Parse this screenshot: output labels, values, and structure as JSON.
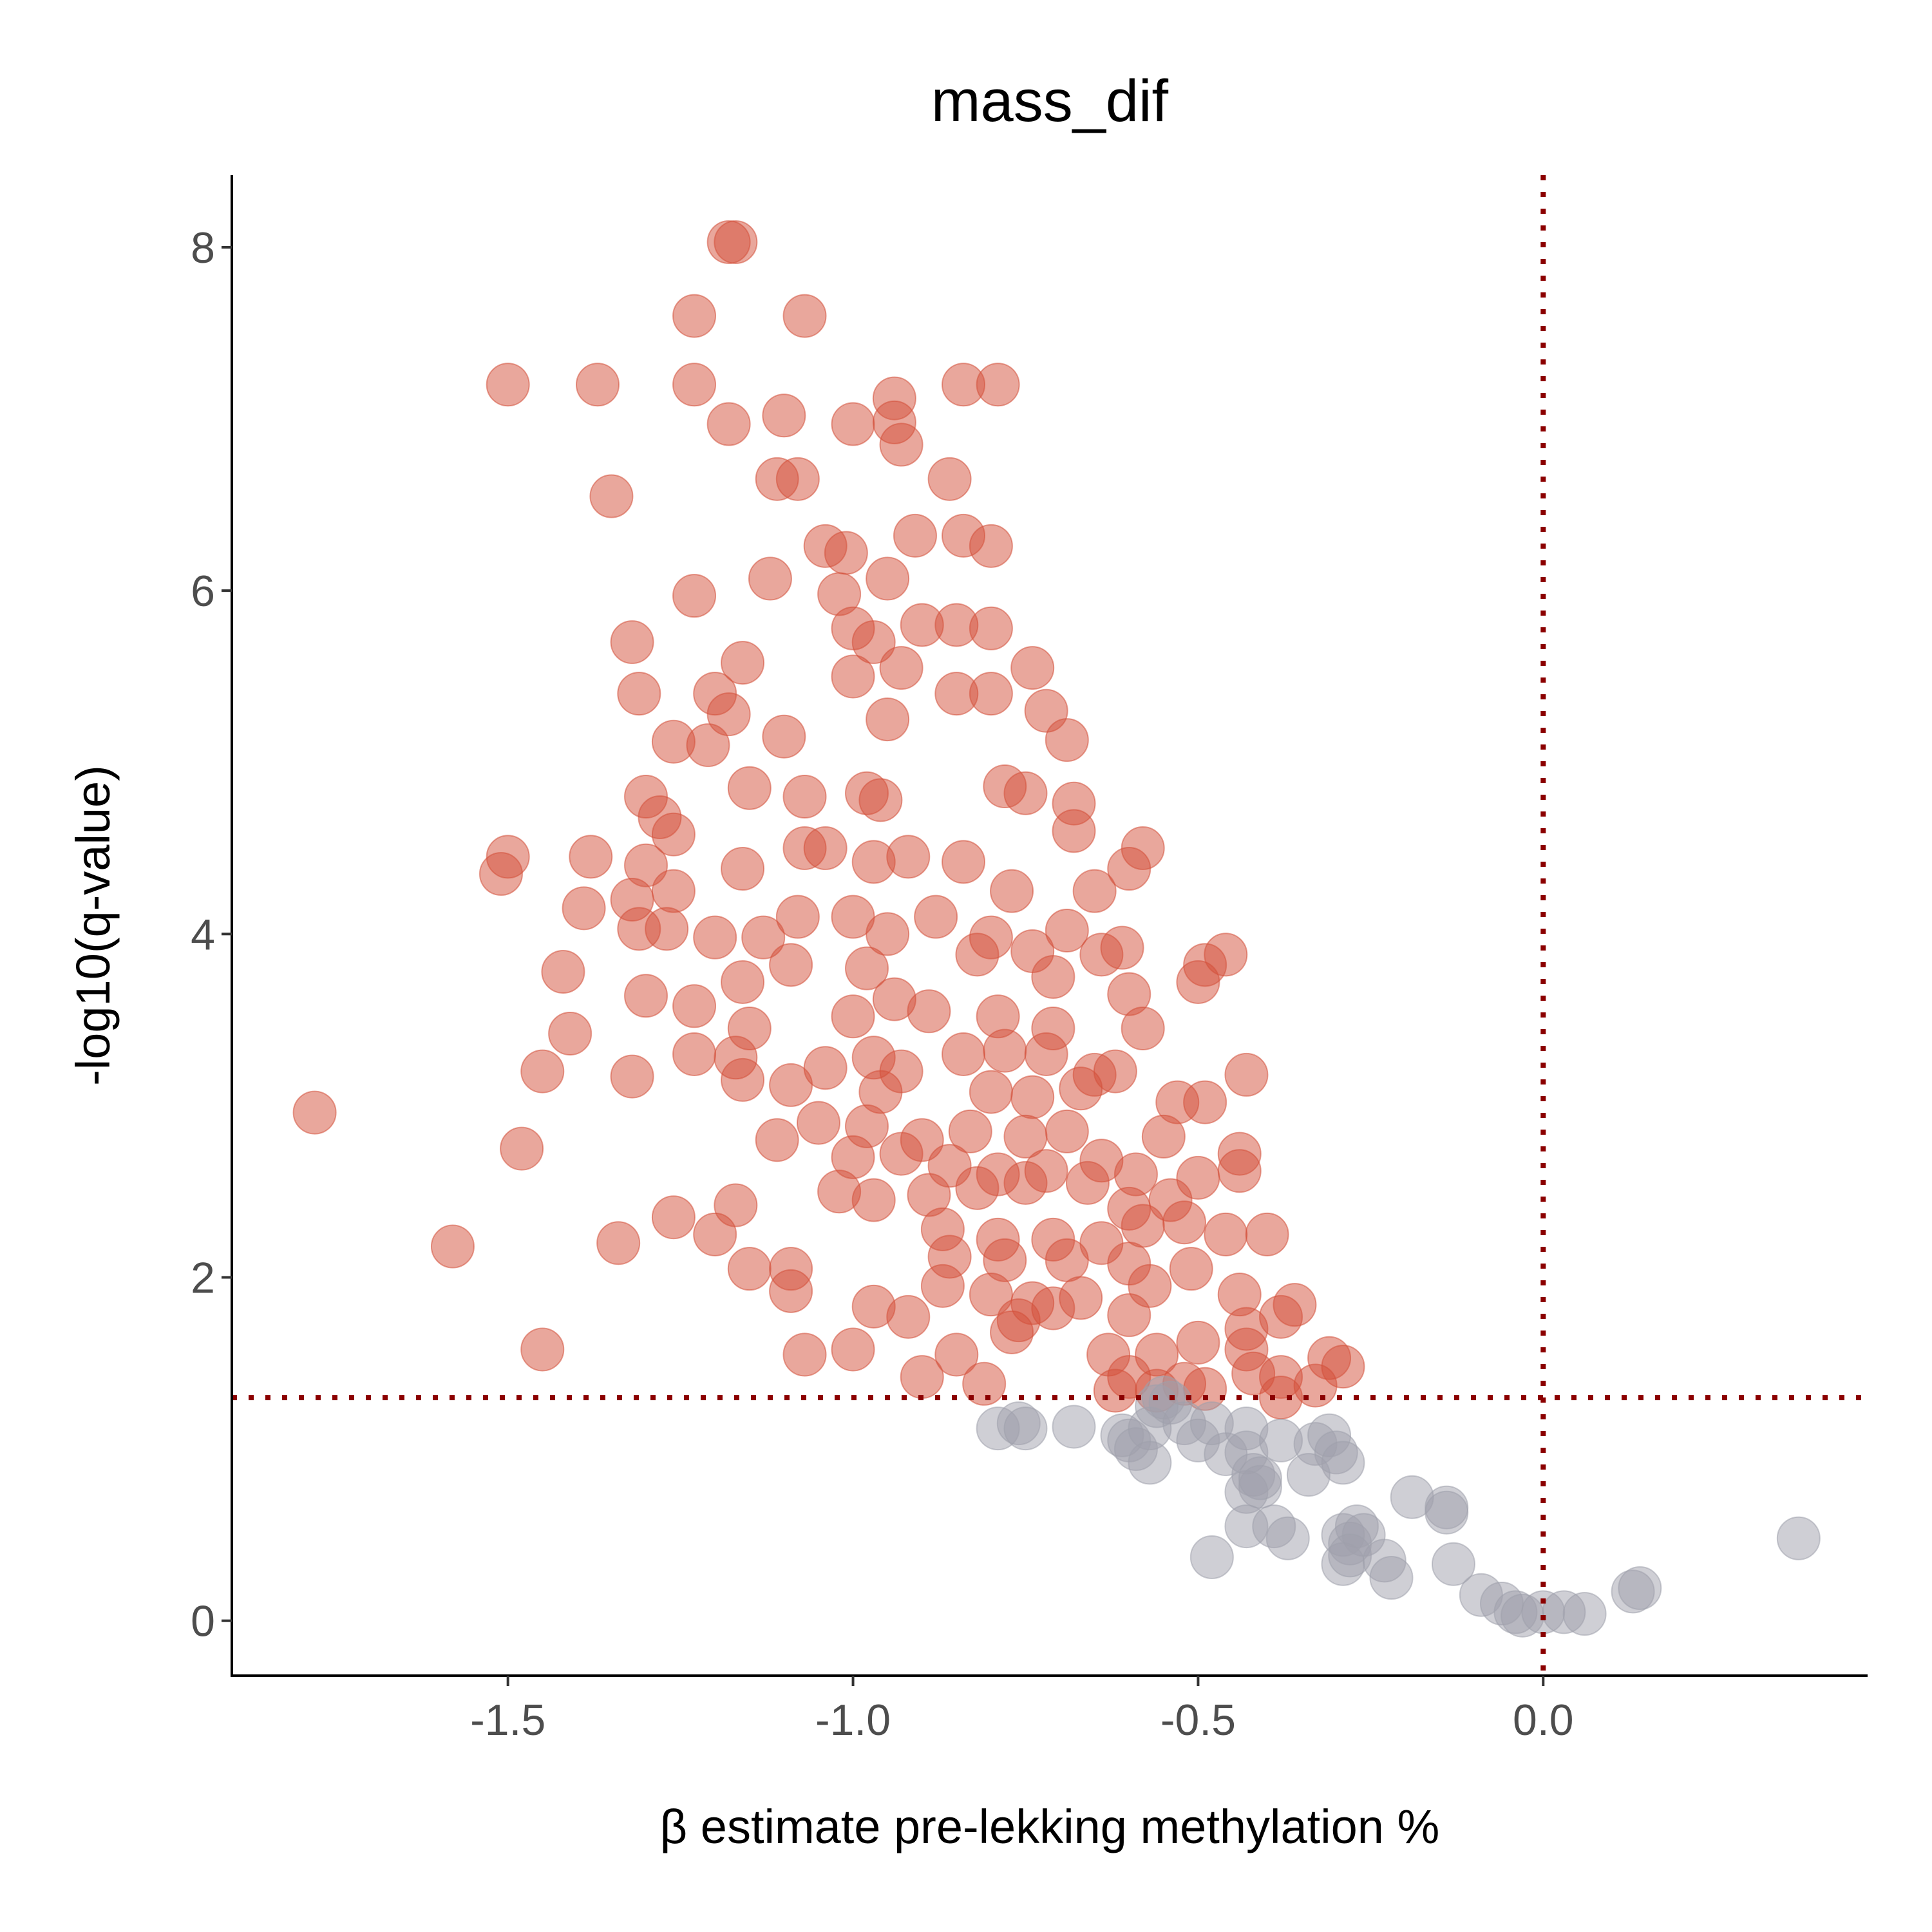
{
  "chart_data": {
    "type": "scatter",
    "title": "mass_dif",
    "xlabel": "β estimate pre-lekking methylation %",
    "ylabel": "-log10(q-value)",
    "xlim": [
      -1.9,
      0.47
    ],
    "ylim": [
      -0.32,
      8.42
    ],
    "x_ticks": [
      -1.5,
      -1.0,
      -0.5,
      0.0
    ],
    "x_tick_labels": [
      "-1.5",
      "-1.0",
      "-0.5",
      "0.0"
    ],
    "y_ticks": [
      0,
      2,
      4,
      6,
      8
    ],
    "y_tick_labels": [
      "0",
      "2",
      "4",
      "6",
      "8"
    ],
    "reference_lines": {
      "vertical_x": 0.0,
      "horizontal_y": 1.3,
      "color": "#8b0000",
      "style": "dotted"
    },
    "grid": false,
    "colors": {
      "significant": "#d4503a",
      "not_significant": "#9fa0ab"
    },
    "series": [
      {
        "values": [
          [
            -1.17,
            8.03
          ],
          [
            -1.18,
            8.03
          ],
          [
            -1.23,
            7.6
          ],
          [
            -1.07,
            7.6
          ],
          [
            -1.5,
            7.2
          ],
          [
            -1.37,
            7.2
          ],
          [
            -1.23,
            7.2
          ],
          [
            -0.84,
            7.2
          ],
          [
            -0.79,
            7.2
          ],
          [
            -0.94,
            7.12
          ],
          [
            -1.18,
            6.97
          ],
          [
            -1.1,
            7.02
          ],
          [
            -1.0,
            6.97
          ],
          [
            -0.94,
            6.98
          ],
          [
            -0.93,
            6.85
          ],
          [
            -1.11,
            6.65
          ],
          [
            -1.08,
            6.65
          ],
          [
            -0.86,
            6.65
          ],
          [
            -1.35,
            6.55
          ],
          [
            -0.91,
            6.32
          ],
          [
            -0.84,
            6.32
          ],
          [
            -1.04,
            6.26
          ],
          [
            -1.01,
            6.22
          ],
          [
            -0.8,
            6.26
          ],
          [
            -1.23,
            5.97
          ],
          [
            -1.12,
            6.07
          ],
          [
            -0.95,
            6.07
          ],
          [
            -1.02,
            5.98
          ],
          [
            -1.32,
            5.7
          ],
          [
            -1.16,
            5.58
          ],
          [
            -1.0,
            5.78
          ],
          [
            -0.97,
            5.7
          ],
          [
            -0.9,
            5.8
          ],
          [
            -0.85,
            5.8
          ],
          [
            -0.8,
            5.78
          ],
          [
            -0.74,
            5.55
          ],
          [
            -1.31,
            5.4
          ],
          [
            -1.2,
            5.4
          ],
          [
            -1.18,
            5.28
          ],
          [
            -1.26,
            5.12
          ],
          [
            -1.21,
            5.1
          ],
          [
            -1.1,
            5.15
          ],
          [
            -1.0,
            5.5
          ],
          [
            -0.93,
            5.55
          ],
          [
            -0.85,
            5.4
          ],
          [
            -0.8,
            5.4
          ],
          [
            -0.72,
            5.3
          ],
          [
            -0.69,
            5.13
          ],
          [
            -0.95,
            5.25
          ],
          [
            -1.3,
            4.8
          ],
          [
            -1.15,
            4.85
          ],
          [
            -1.07,
            4.8
          ],
          [
            -0.98,
            4.82
          ],
          [
            -0.96,
            4.78
          ],
          [
            -0.78,
            4.86
          ],
          [
            -0.75,
            4.82
          ],
          [
            -0.68,
            4.76
          ],
          [
            -1.28,
            4.68
          ],
          [
            -1.26,
            4.58
          ],
          [
            -1.5,
            4.45
          ],
          [
            -1.51,
            4.35
          ],
          [
            -1.38,
            4.45
          ],
          [
            -1.3,
            4.4
          ],
          [
            -1.26,
            4.25
          ],
          [
            -1.32,
            4.2
          ],
          [
            -1.39,
            4.15
          ],
          [
            -1.16,
            4.38
          ],
          [
            -1.07,
            4.5
          ],
          [
            -1.04,
            4.5
          ],
          [
            -0.97,
            4.42
          ],
          [
            -0.92,
            4.45
          ],
          [
            -0.84,
            4.42
          ],
          [
            -0.77,
            4.25
          ],
          [
            -0.68,
            4.6
          ],
          [
            -0.58,
            4.5
          ],
          [
            -0.6,
            4.38
          ],
          [
            -0.65,
            4.25
          ],
          [
            -1.31,
            4.03
          ],
          [
            -1.27,
            4.03
          ],
          [
            -1.2,
            3.98
          ],
          [
            -1.13,
            3.98
          ],
          [
            -1.08,
            4.1
          ],
          [
            -1.0,
            4.1
          ],
          [
            -0.95,
            4.0
          ],
          [
            -0.88,
            4.1
          ],
          [
            -0.8,
            3.98
          ],
          [
            -0.74,
            3.9
          ],
          [
            -0.69,
            4.02
          ],
          [
            -0.64,
            3.88
          ],
          [
            -0.61,
            3.92
          ],
          [
            -1.42,
            3.78
          ],
          [
            -1.16,
            3.72
          ],
          [
            -1.09,
            3.82
          ],
          [
            -0.98,
            3.8
          ],
          [
            -0.82,
            3.88
          ],
          [
            -0.71,
            3.75
          ],
          [
            -0.49,
            3.82
          ],
          [
            -0.46,
            3.88
          ],
          [
            -0.5,
            3.72
          ],
          [
            -1.3,
            3.64
          ],
          [
            -1.23,
            3.58
          ],
          [
            -1.15,
            3.45
          ],
          [
            -1.0,
            3.52
          ],
          [
            -0.94,
            3.62
          ],
          [
            -0.89,
            3.55
          ],
          [
            -0.79,
            3.52
          ],
          [
            -0.71,
            3.45
          ],
          [
            -0.6,
            3.65
          ],
          [
            -0.58,
            3.45
          ],
          [
            -1.41,
            3.42
          ],
          [
            -1.23,
            3.3
          ],
          [
            -1.17,
            3.28
          ],
          [
            -1.04,
            3.22
          ],
          [
            -0.97,
            3.28
          ],
          [
            -0.93,
            3.2
          ],
          [
            -0.84,
            3.3
          ],
          [
            -0.78,
            3.32
          ],
          [
            -0.72,
            3.3
          ],
          [
            -0.65,
            3.18
          ],
          [
            -0.62,
            3.2
          ],
          [
            -0.43,
            3.18
          ],
          [
            -1.45,
            3.2
          ],
          [
            -1.32,
            3.17
          ],
          [
            -1.16,
            3.15
          ],
          [
            -1.09,
            3.12
          ],
          [
            -0.96,
            3.08
          ],
          [
            -0.8,
            3.08
          ],
          [
            -0.74,
            3.05
          ],
          [
            -0.67,
            3.1
          ],
          [
            -1.78,
            2.96
          ],
          [
            -1.05,
            2.9
          ],
          [
            -0.98,
            2.88
          ],
          [
            -0.9,
            2.8
          ],
          [
            -0.83,
            2.85
          ],
          [
            -0.75,
            2.82
          ],
          [
            -0.69,
            2.85
          ],
          [
            -0.53,
            3.02
          ],
          [
            -0.49,
            3.02
          ],
          [
            -0.55,
            2.82
          ],
          [
            -1.48,
            2.75
          ],
          [
            -1.11,
            2.8
          ],
          [
            -1.0,
            2.7
          ],
          [
            -0.93,
            2.72
          ],
          [
            -0.86,
            2.65
          ],
          [
            -0.79,
            2.6
          ],
          [
            -0.72,
            2.62
          ],
          [
            -0.64,
            2.68
          ],
          [
            -0.59,
            2.6
          ],
          [
            -0.44,
            2.72
          ],
          [
            -0.44,
            2.62
          ],
          [
            -1.02,
            2.5
          ],
          [
            -0.97,
            2.45
          ],
          [
            -0.89,
            2.48
          ],
          [
            -0.82,
            2.52
          ],
          [
            -0.75,
            2.55
          ],
          [
            -0.66,
            2.55
          ],
          [
            -0.6,
            2.4
          ],
          [
            -0.54,
            2.45
          ],
          [
            -0.5,
            2.58
          ],
          [
            -1.26,
            2.35
          ],
          [
            -1.17,
            2.42
          ],
          [
            -1.2,
            2.25
          ],
          [
            -1.34,
            2.2
          ],
          [
            -1.58,
            2.18
          ],
          [
            -0.87,
            2.28
          ],
          [
            -0.79,
            2.22
          ],
          [
            -0.71,
            2.22
          ],
          [
            -0.64,
            2.2
          ],
          [
            -0.58,
            2.3
          ],
          [
            -0.52,
            2.32
          ],
          [
            -0.46,
            2.25
          ],
          [
            -0.4,
            2.25
          ],
          [
            -1.15,
            2.05
          ],
          [
            -1.09,
            2.05
          ],
          [
            -0.86,
            2.12
          ],
          [
            -0.78,
            2.1
          ],
          [
            -0.69,
            2.1
          ],
          [
            -0.6,
            2.08
          ],
          [
            -0.51,
            2.05
          ],
          [
            -1.09,
            1.92
          ],
          [
            -0.87,
            1.95
          ],
          [
            -0.8,
            1.9
          ],
          [
            -0.74,
            1.85
          ],
          [
            -0.67,
            1.88
          ],
          [
            -0.57,
            1.95
          ],
          [
            -0.44,
            1.9
          ],
          [
            -0.97,
            1.83
          ],
          [
            -0.92,
            1.77
          ],
          [
            -0.76,
            1.75
          ],
          [
            -0.71,
            1.82
          ],
          [
            -0.6,
            1.78
          ],
          [
            -0.43,
            1.7
          ],
          [
            -0.38,
            1.77
          ],
          [
            -0.36,
            1.84
          ],
          [
            -1.45,
            1.58
          ],
          [
            -1.07,
            1.55
          ],
          [
            -1.0,
            1.58
          ],
          [
            -0.85,
            1.55
          ],
          [
            -0.77,
            1.68
          ],
          [
            -0.63,
            1.55
          ],
          [
            -0.56,
            1.55
          ],
          [
            -0.5,
            1.62
          ],
          [
            -0.43,
            1.58
          ],
          [
            -0.31,
            1.53
          ],
          [
            -0.29,
            1.48
          ],
          [
            -0.9,
            1.42
          ],
          [
            -0.81,
            1.38
          ],
          [
            -0.6,
            1.42
          ],
          [
            -0.52,
            1.38
          ],
          [
            -0.49,
            1.35
          ],
          [
            -0.42,
            1.44
          ],
          [
            -0.38,
            1.42
          ],
          [
            -0.38,
            1.3
          ],
          [
            -0.33,
            1.37
          ],
          [
            -0.62,
            1.34
          ],
          [
            -0.56,
            1.34
          ]
        ]
      },
      {
        "values": [
          [
            -0.79,
            1.12
          ],
          [
            -0.76,
            1.15
          ],
          [
            -0.75,
            1.12
          ],
          [
            -0.68,
            1.13
          ],
          [
            -0.61,
            1.08
          ],
          [
            -0.6,
            1.05
          ],
          [
            -0.59,
            1.0
          ],
          [
            -0.57,
            1.12
          ],
          [
            -0.55,
            1.3
          ],
          [
            -0.56,
            1.25
          ],
          [
            -0.54,
            1.27
          ],
          [
            -0.52,
            1.15
          ],
          [
            -0.5,
            1.05
          ],
          [
            -0.48,
            1.15
          ],
          [
            -0.46,
            0.97
          ],
          [
            -0.43,
            1.12
          ],
          [
            -0.43,
            0.98
          ],
          [
            -0.42,
            0.85
          ],
          [
            -0.41,
            0.78
          ],
          [
            -0.38,
            1.05
          ],
          [
            -0.33,
            1.03
          ],
          [
            -0.31,
            1.08
          ],
          [
            -0.3,
            0.98
          ],
          [
            -0.29,
            0.92
          ],
          [
            -0.57,
            0.92
          ],
          [
            -0.43,
            0.75
          ],
          [
            -0.41,
            0.83
          ],
          [
            -0.34,
            0.85
          ],
          [
            -0.19,
            0.72
          ],
          [
            -0.14,
            0.66
          ],
          [
            -0.14,
            0.63
          ],
          [
            -0.43,
            0.55
          ],
          [
            -0.39,
            0.55
          ],
          [
            -0.37,
            0.48
          ],
          [
            -0.48,
            0.37
          ],
          [
            -0.29,
            0.5
          ],
          [
            -0.28,
            0.45
          ],
          [
            -0.27,
            0.55
          ],
          [
            -0.26,
            0.5
          ],
          [
            -0.29,
            0.33
          ],
          [
            -0.28,
            0.38
          ],
          [
            -0.23,
            0.35
          ],
          [
            -0.22,
            0.25
          ],
          [
            -0.13,
            0.33
          ],
          [
            -0.09,
            0.15
          ],
          [
            -0.06,
            0.1
          ],
          [
            -0.04,
            0.05
          ],
          [
            -0.03,
            0.03
          ],
          [
            0.0,
            0.05
          ],
          [
            0.03,
            0.05
          ],
          [
            0.06,
            0.04
          ],
          [
            0.13,
            0.17
          ],
          [
            0.14,
            0.19
          ],
          [
            0.37,
            0.48
          ]
        ]
      }
    ]
  }
}
